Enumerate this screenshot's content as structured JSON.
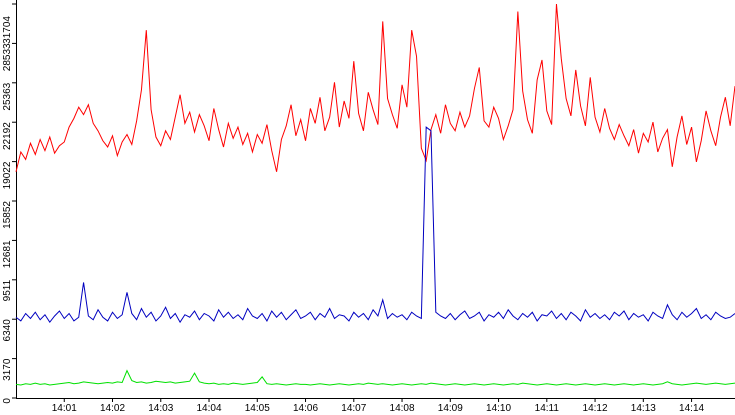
{
  "chart_data": {
    "type": "line",
    "categories": [
      null,
      null,
      null,
      null,
      null,
      null,
      null,
      null,
      null,
      null,
      "14:01",
      null,
      null,
      null,
      null,
      null,
      null,
      null,
      null,
      null,
      "14:02",
      null,
      null,
      null,
      null,
      null,
      null,
      null,
      null,
      null,
      "14:03",
      null,
      null,
      null,
      null,
      null,
      null,
      null,
      null,
      null,
      "14:04",
      null,
      null,
      null,
      null,
      null,
      null,
      null,
      null,
      null,
      "14:05",
      null,
      null,
      null,
      null,
      null,
      null,
      null,
      null,
      null,
      "14:06",
      null,
      null,
      null,
      null,
      null,
      null,
      null,
      null,
      null,
      "14:07",
      null,
      null,
      null,
      null,
      null,
      null,
      null,
      null,
      null,
      "14:08",
      null,
      null,
      null,
      null,
      null,
      null,
      null,
      null,
      null,
      "14:09",
      null,
      null,
      null,
      null,
      null,
      null,
      null,
      null,
      null,
      "14:10",
      null,
      null,
      null,
      null,
      null,
      null,
      null,
      null,
      null,
      "14:11",
      null,
      null,
      null,
      null,
      null,
      null,
      null,
      null,
      null,
      "14:12",
      null,
      null,
      null,
      null,
      null,
      null,
      null,
      null,
      null,
      "14:13",
      null,
      null,
      null,
      null,
      null,
      null,
      null,
      null,
      null,
      "14:14",
      null,
      null,
      null,
      null,
      null,
      null,
      null,
      null,
      null
    ],
    "series": [
      {
        "color": "#ff0000",
        "values": [
          18200,
          19800,
          19200,
          20500,
          19600,
          20800,
          19900,
          21000,
          19700,
          20300,
          20600,
          21800,
          22500,
          23400,
          22800,
          23600,
          22100,
          21500,
          20700,
          20200,
          21100,
          19500,
          20600,
          21200,
          20400,
          22300,
          24800,
          29600,
          23200,
          21000,
          20300,
          21500,
          20800,
          22600,
          24400,
          22100,
          23000,
          21400,
          22800,
          21900,
          20700,
          23300,
          21600,
          20200,
          22100,
          20900,
          21800,
          20400,
          21300,
          19800,
          21200,
          20500,
          22000,
          19900,
          18200,
          20800,
          21900,
          23600,
          21100,
          22400,
          20700,
          23300,
          22100,
          24200,
          21500,
          22600,
          25400,
          21800,
          23900,
          22500,
          27100,
          22900,
          21500,
          24600,
          23200,
          22000,
          30300,
          24100,
          22800,
          21700,
          25200,
          23400,
          29600,
          27500,
          20100,
          19100,
          21600,
          22800,
          21300,
          23600,
          22100,
          21500,
          23000,
          21800,
          22700,
          24900,
          26600,
          22300,
          21800,
          23400,
          22500,
          20800,
          21900,
          23200,
          31100,
          24700,
          22400,
          21300,
          25600,
          27200,
          23100,
          22000,
          31700,
          27300,
          24100,
          22700,
          26400,
          23500,
          21900,
          25800,
          22600,
          21400,
          23300,
          21700,
          20800,
          22000,
          21100,
          20300,
          21600,
          19700,
          21300,
          20600,
          22200,
          19800,
          20900,
          21600,
          18600,
          21000,
          22700,
          20400,
          21800,
          19000,
          20700,
          23100,
          21500,
          20300,
          22600,
          24200,
          21900,
          25100
        ]
      },
      {
        "color": "#0000c0",
        "values": [
          6500,
          6200,
          6800,
          6400,
          6900,
          6300,
          6700,
          6100,
          6600,
          7000,
          6400,
          6800,
          6200,
          6500,
          9300,
          6600,
          6300,
          7100,
          6500,
          6200,
          6900,
          6400,
          6700,
          8500,
          6800,
          6300,
          7200,
          6500,
          6900,
          6200,
          6600,
          7300,
          6400,
          6800,
          6100,
          6700,
          6500,
          7000,
          6300,
          6800,
          6600,
          6200,
          7100,
          6500,
          6900,
          6400,
          6700,
          6300,
          7200,
          6600,
          6400,
          6800,
          6200,
          7000,
          6500,
          6900,
          6300,
          6700,
          7100,
          6400,
          6600,
          6900,
          6300,
          6800,
          6500,
          7200,
          6400,
          6700,
          6600,
          6200,
          6900,
          6500,
          6800,
          6300,
          7100,
          6600,
          7900,
          6400,
          6800,
          6500,
          6700,
          6300,
          6900,
          6600,
          6400,
          21800,
          21500,
          6900,
          6600,
          6400,
          6800,
          6300,
          6700,
          7000,
          6400,
          6600,
          6900,
          6200,
          6700,
          6500,
          6900,
          6400,
          7100,
          6600,
          6300,
          6800,
          6500,
          6900,
          6200,
          6700,
          6600,
          7000,
          6400,
          6800,
          6300,
          6900,
          6600,
          6200,
          7100,
          6500,
          6800,
          6400,
          6700,
          6300,
          6900,
          6600,
          7000,
          6300,
          6800,
          6500,
          6700,
          6200,
          6900,
          6600,
          6400,
          7500,
          6700,
          6300,
          6900,
          6500,
          6800,
          7200,
          6400,
          6700,
          6300,
          6900,
          6600,
          6400,
          6500,
          6800
        ]
      },
      {
        "color": "#00e000",
        "values": [
          1100,
          1050,
          1150,
          1100,
          1200,
          1100,
          1150,
          1050,
          1100,
          1150,
          1200,
          1250,
          1150,
          1200,
          1300,
          1250,
          1200,
          1150,
          1200,
          1250,
          1200,
          1300,
          1250,
          2200,
          1400,
          1250,
          1300,
          1200,
          1250,
          1350,
          1300,
          1250,
          1300,
          1200,
          1250,
          1300,
          1350,
          2000,
          1300,
          1200,
          1150,
          1200,
          1100,
          1150,
          1100,
          1200,
          1150,
          1100,
          1150,
          1200,
          1250,
          1700,
          1150,
          1100,
          1150,
          1100,
          1050,
          1100,
          1150,
          1100,
          1100,
          1050,
          1100,
          1150,
          1100,
          1050,
          1100,
          1150,
          1100,
          1050,
          1100,
          1150,
          1100,
          1200,
          1150,
          1100,
          1150,
          1100,
          1050,
          1100,
          1150,
          1100,
          1050,
          1100,
          1150,
          1100,
          1200,
          1150,
          1100,
          1050,
          1100,
          1150,
          1100,
          1050,
          1100,
          1150,
          1100,
          1050,
          1100,
          1150,
          1100,
          1050,
          1100,
          1150,
          1100,
          1200,
          1150,
          1100,
          1050,
          1100,
          1150,
          1100,
          1050,
          1100,
          1150,
          1100,
          1050,
          1100,
          1150,
          1100,
          1050,
          1100,
          1150,
          1100,
          1050,
          1100,
          1150,
          1100,
          1050,
          1100,
          1150,
          1100,
          1050,
          1100,
          1150,
          1300,
          1150,
          1100,
          1050,
          1100,
          1150,
          1200,
          1150,
          1100,
          1150,
          1200,
          1150,
          1100,
          1150,
          1200
        ]
      }
    ],
    "ylim": [
      0,
      31704
    ],
    "yticks": [
      0,
      3170,
      6340,
      9511,
      12681,
      15852,
      19022,
      22192,
      25363,
      28533,
      31704
    ],
    "grid": false
  }
}
